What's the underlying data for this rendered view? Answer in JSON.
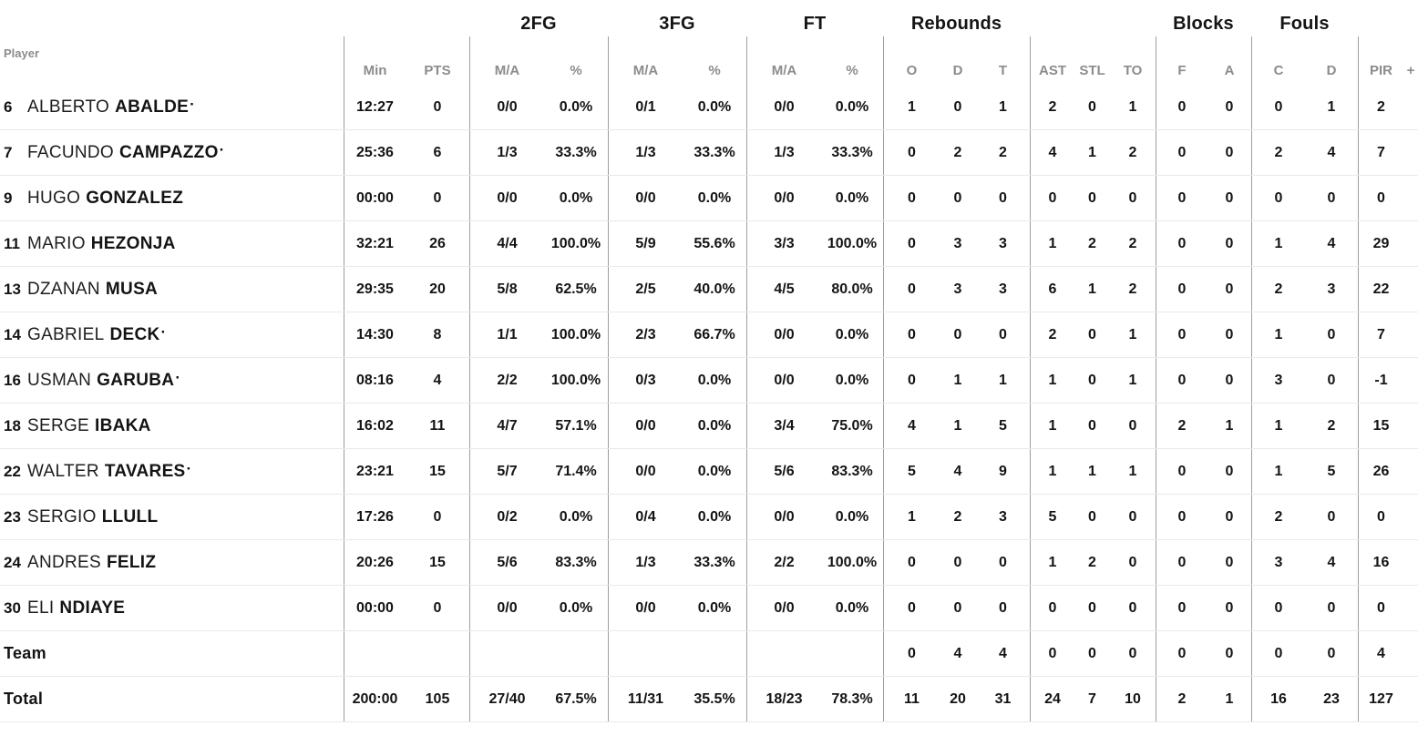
{
  "colors": {
    "text": "#141414",
    "muted": "#8c8c8c",
    "rule_vertical": "#9e9e9e",
    "rule_horizontal": "#e9e9e9",
    "background": "#ffffff"
  },
  "header": {
    "player": "Player",
    "groups": {
      "fg2": "2FG",
      "fg3": "3FG",
      "ft": "FT",
      "rebounds": "Rebounds",
      "blocks": "Blocks",
      "fouls": "Fouls"
    },
    "cols": {
      "min": "Min",
      "pts": "PTS",
      "ma": "M/A",
      "pct": "%",
      "reb_o": "O",
      "reb_d": "D",
      "reb_t": "T",
      "ast": "AST",
      "stl": "STL",
      "to": "TO",
      "blk_f": "F",
      "blk_a": "A",
      "foul_c": "C",
      "foul_d": "D",
      "pir": "PIR",
      "plus": "+"
    }
  },
  "rows": [
    {
      "num": "6",
      "first": "ALBERTO",
      "last": "ABALDE",
      "starter": true,
      "min": "12:27",
      "pts": "0",
      "fg2_ma": "0/0",
      "fg2_pct": "0.0%",
      "fg3_ma": "0/1",
      "fg3_pct": "0.0%",
      "ft_ma": "0/0",
      "ft_pct": "0.0%",
      "reb_o": "1",
      "reb_d": "0",
      "reb_t": "1",
      "ast": "2",
      "stl": "0",
      "to": "1",
      "blk_f": "0",
      "blk_a": "0",
      "foul_c": "0",
      "foul_d": "1",
      "pir": "2"
    },
    {
      "num": "7",
      "first": "FACUNDO",
      "last": "CAMPAZZO",
      "starter": true,
      "min": "25:36",
      "pts": "6",
      "fg2_ma": "1/3",
      "fg2_pct": "33.3%",
      "fg3_ma": "1/3",
      "fg3_pct": "33.3%",
      "ft_ma": "1/3",
      "ft_pct": "33.3%",
      "reb_o": "0",
      "reb_d": "2",
      "reb_t": "2",
      "ast": "4",
      "stl": "1",
      "to": "2",
      "blk_f": "0",
      "blk_a": "0",
      "foul_c": "2",
      "foul_d": "4",
      "pir": "7"
    },
    {
      "num": "9",
      "first": "HUGO",
      "last": "GONZALEZ",
      "starter": false,
      "min": "00:00",
      "pts": "0",
      "fg2_ma": "0/0",
      "fg2_pct": "0.0%",
      "fg3_ma": "0/0",
      "fg3_pct": "0.0%",
      "ft_ma": "0/0",
      "ft_pct": "0.0%",
      "reb_o": "0",
      "reb_d": "0",
      "reb_t": "0",
      "ast": "0",
      "stl": "0",
      "to": "0",
      "blk_f": "0",
      "blk_a": "0",
      "foul_c": "0",
      "foul_d": "0",
      "pir": "0"
    },
    {
      "num": "11",
      "first": "MARIO",
      "last": "HEZONJA",
      "starter": false,
      "min": "32:21",
      "pts": "26",
      "fg2_ma": "4/4",
      "fg2_pct": "100.0%",
      "fg3_ma": "5/9",
      "fg3_pct": "55.6%",
      "ft_ma": "3/3",
      "ft_pct": "100.0%",
      "reb_o": "0",
      "reb_d": "3",
      "reb_t": "3",
      "ast": "1",
      "stl": "2",
      "to": "2",
      "blk_f": "0",
      "blk_a": "0",
      "foul_c": "1",
      "foul_d": "4",
      "pir": "29"
    },
    {
      "num": "13",
      "first": "DZANAN",
      "last": "MUSA",
      "starter": false,
      "min": "29:35",
      "pts": "20",
      "fg2_ma": "5/8",
      "fg2_pct": "62.5%",
      "fg3_ma": "2/5",
      "fg3_pct": "40.0%",
      "ft_ma": "4/5",
      "ft_pct": "80.0%",
      "reb_o": "0",
      "reb_d": "3",
      "reb_t": "3",
      "ast": "6",
      "stl": "1",
      "to": "2",
      "blk_f": "0",
      "blk_a": "0",
      "foul_c": "2",
      "foul_d": "3",
      "pir": "22"
    },
    {
      "num": "14",
      "first": "GABRIEL",
      "last": "DECK",
      "starter": true,
      "min": "14:30",
      "pts": "8",
      "fg2_ma": "1/1",
      "fg2_pct": "100.0%",
      "fg3_ma": "2/3",
      "fg3_pct": "66.7%",
      "ft_ma": "0/0",
      "ft_pct": "0.0%",
      "reb_o": "0",
      "reb_d": "0",
      "reb_t": "0",
      "ast": "2",
      "stl": "0",
      "to": "1",
      "blk_f": "0",
      "blk_a": "0",
      "foul_c": "1",
      "foul_d": "0",
      "pir": "7"
    },
    {
      "num": "16",
      "first": "USMAN",
      "last": "GARUBA",
      "starter": true,
      "min": "08:16",
      "pts": "4",
      "fg2_ma": "2/2",
      "fg2_pct": "100.0%",
      "fg3_ma": "0/3",
      "fg3_pct": "0.0%",
      "ft_ma": "0/0",
      "ft_pct": "0.0%",
      "reb_o": "0",
      "reb_d": "1",
      "reb_t": "1",
      "ast": "1",
      "stl": "0",
      "to": "1",
      "blk_f": "0",
      "blk_a": "0",
      "foul_c": "3",
      "foul_d": "0",
      "pir": "-1"
    },
    {
      "num": "18",
      "first": "SERGE",
      "last": "IBAKA",
      "starter": false,
      "min": "16:02",
      "pts": "11",
      "fg2_ma": "4/7",
      "fg2_pct": "57.1%",
      "fg3_ma": "0/0",
      "fg3_pct": "0.0%",
      "ft_ma": "3/4",
      "ft_pct": "75.0%",
      "reb_o": "4",
      "reb_d": "1",
      "reb_t": "5",
      "ast": "1",
      "stl": "0",
      "to": "0",
      "blk_f": "2",
      "blk_a": "1",
      "foul_c": "1",
      "foul_d": "2",
      "pir": "15"
    },
    {
      "num": "22",
      "first": "WALTER",
      "last": "TAVARES",
      "starter": true,
      "min": "23:21",
      "pts": "15",
      "fg2_ma": "5/7",
      "fg2_pct": "71.4%",
      "fg3_ma": "0/0",
      "fg3_pct": "0.0%",
      "ft_ma": "5/6",
      "ft_pct": "83.3%",
      "reb_o": "5",
      "reb_d": "4",
      "reb_t": "9",
      "ast": "1",
      "stl": "1",
      "to": "1",
      "blk_f": "0",
      "blk_a": "0",
      "foul_c": "1",
      "foul_d": "5",
      "pir": "26"
    },
    {
      "num": "23",
      "first": "SERGIO",
      "last": "LLULL",
      "starter": false,
      "min": "17:26",
      "pts": "0",
      "fg2_ma": "0/2",
      "fg2_pct": "0.0%",
      "fg3_ma": "0/4",
      "fg3_pct": "0.0%",
      "ft_ma": "0/0",
      "ft_pct": "0.0%",
      "reb_o": "1",
      "reb_d": "2",
      "reb_t": "3",
      "ast": "5",
      "stl": "0",
      "to": "0",
      "blk_f": "0",
      "blk_a": "0",
      "foul_c": "2",
      "foul_d": "0",
      "pir": "0"
    },
    {
      "num": "24",
      "first": "ANDRES",
      "last": "FELIZ",
      "starter": false,
      "min": "20:26",
      "pts": "15",
      "fg2_ma": "5/6",
      "fg2_pct": "83.3%",
      "fg3_ma": "1/3",
      "fg3_pct": "33.3%",
      "ft_ma": "2/2",
      "ft_pct": "100.0%",
      "reb_o": "0",
      "reb_d": "0",
      "reb_t": "0",
      "ast": "1",
      "stl": "2",
      "to": "0",
      "blk_f": "0",
      "blk_a": "0",
      "foul_c": "3",
      "foul_d": "4",
      "pir": "16"
    },
    {
      "num": "30",
      "first": "ELI",
      "last": "NDIAYE",
      "starter": false,
      "min": "00:00",
      "pts": "0",
      "fg2_ma": "0/0",
      "fg2_pct": "0.0%",
      "fg3_ma": "0/0",
      "fg3_pct": "0.0%",
      "ft_ma": "0/0",
      "ft_pct": "0.0%",
      "reb_o": "0",
      "reb_d": "0",
      "reb_t": "0",
      "ast": "0",
      "stl": "0",
      "to": "0",
      "blk_f": "0",
      "blk_a": "0",
      "foul_c": "0",
      "foul_d": "0",
      "pir": "0"
    },
    {
      "last": "Team",
      "reb_o": "0",
      "reb_d": "4",
      "reb_t": "4",
      "ast": "0",
      "stl": "0",
      "to": "0",
      "blk_f": "0",
      "blk_a": "0",
      "foul_c": "0",
      "foul_d": "0",
      "pir": "4"
    },
    {
      "last": "Total",
      "min": "200:00",
      "pts": "105",
      "fg2_ma": "27/40",
      "fg2_pct": "67.5%",
      "fg3_ma": "11/31",
      "fg3_pct": "35.5%",
      "ft_ma": "18/23",
      "ft_pct": "78.3%",
      "reb_o": "11",
      "reb_d": "20",
      "reb_t": "31",
      "ast": "24",
      "stl": "7",
      "to": "10",
      "blk_f": "2",
      "blk_a": "1",
      "foul_c": "16",
      "foul_d": "23",
      "pir": "127"
    }
  ]
}
